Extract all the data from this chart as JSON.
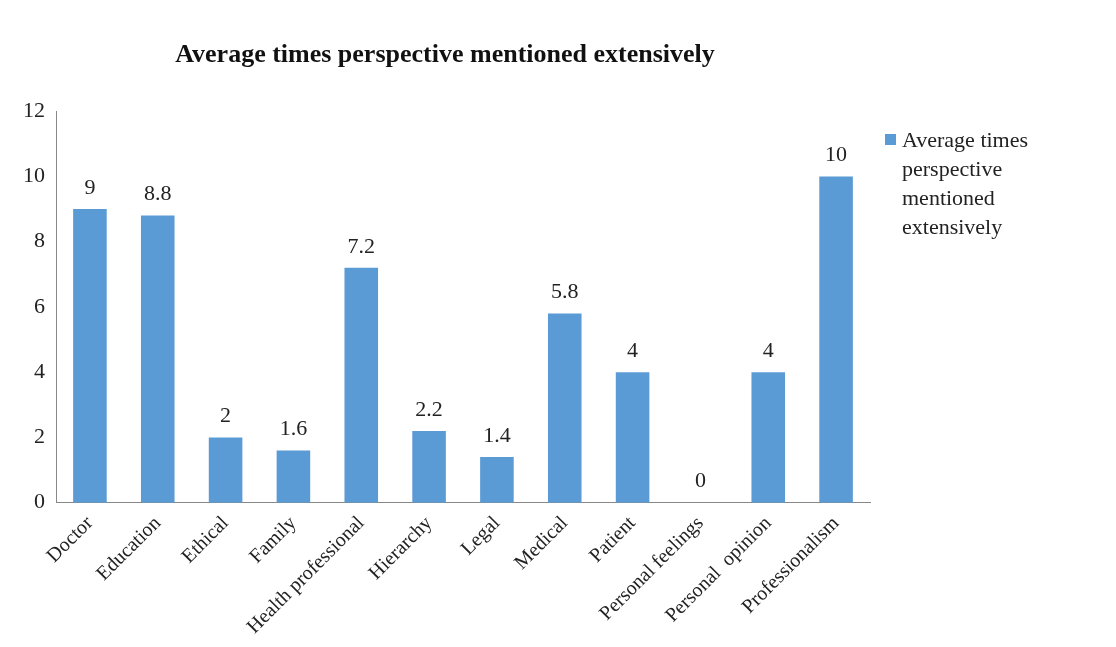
{
  "chart_data": {
    "type": "bar",
    "title": "Average times perspective mentioned extensively",
    "categories": [
      "Doctor",
      "Education",
      "Ethical",
      "Family",
      "Health professional",
      "Hierarchy",
      "Legal",
      "Medical",
      "Patient",
      "Personal feelings",
      "Personal  opinion",
      "Professionalism"
    ],
    "series": [
      {
        "name": "Average times perspective mentioned extensively",
        "color": "#5b9bd5",
        "values": [
          9,
          8.8,
          2,
          1.6,
          7.2,
          2.2,
          1.4,
          5.8,
          4,
          0,
          4,
          10
        ]
      }
    ],
    "ylim": [
      0,
      12
    ],
    "yticks": [
      0,
      2,
      4,
      6,
      8,
      10,
      12
    ],
    "grid": false,
    "legend": "right",
    "data_labels": true
  }
}
